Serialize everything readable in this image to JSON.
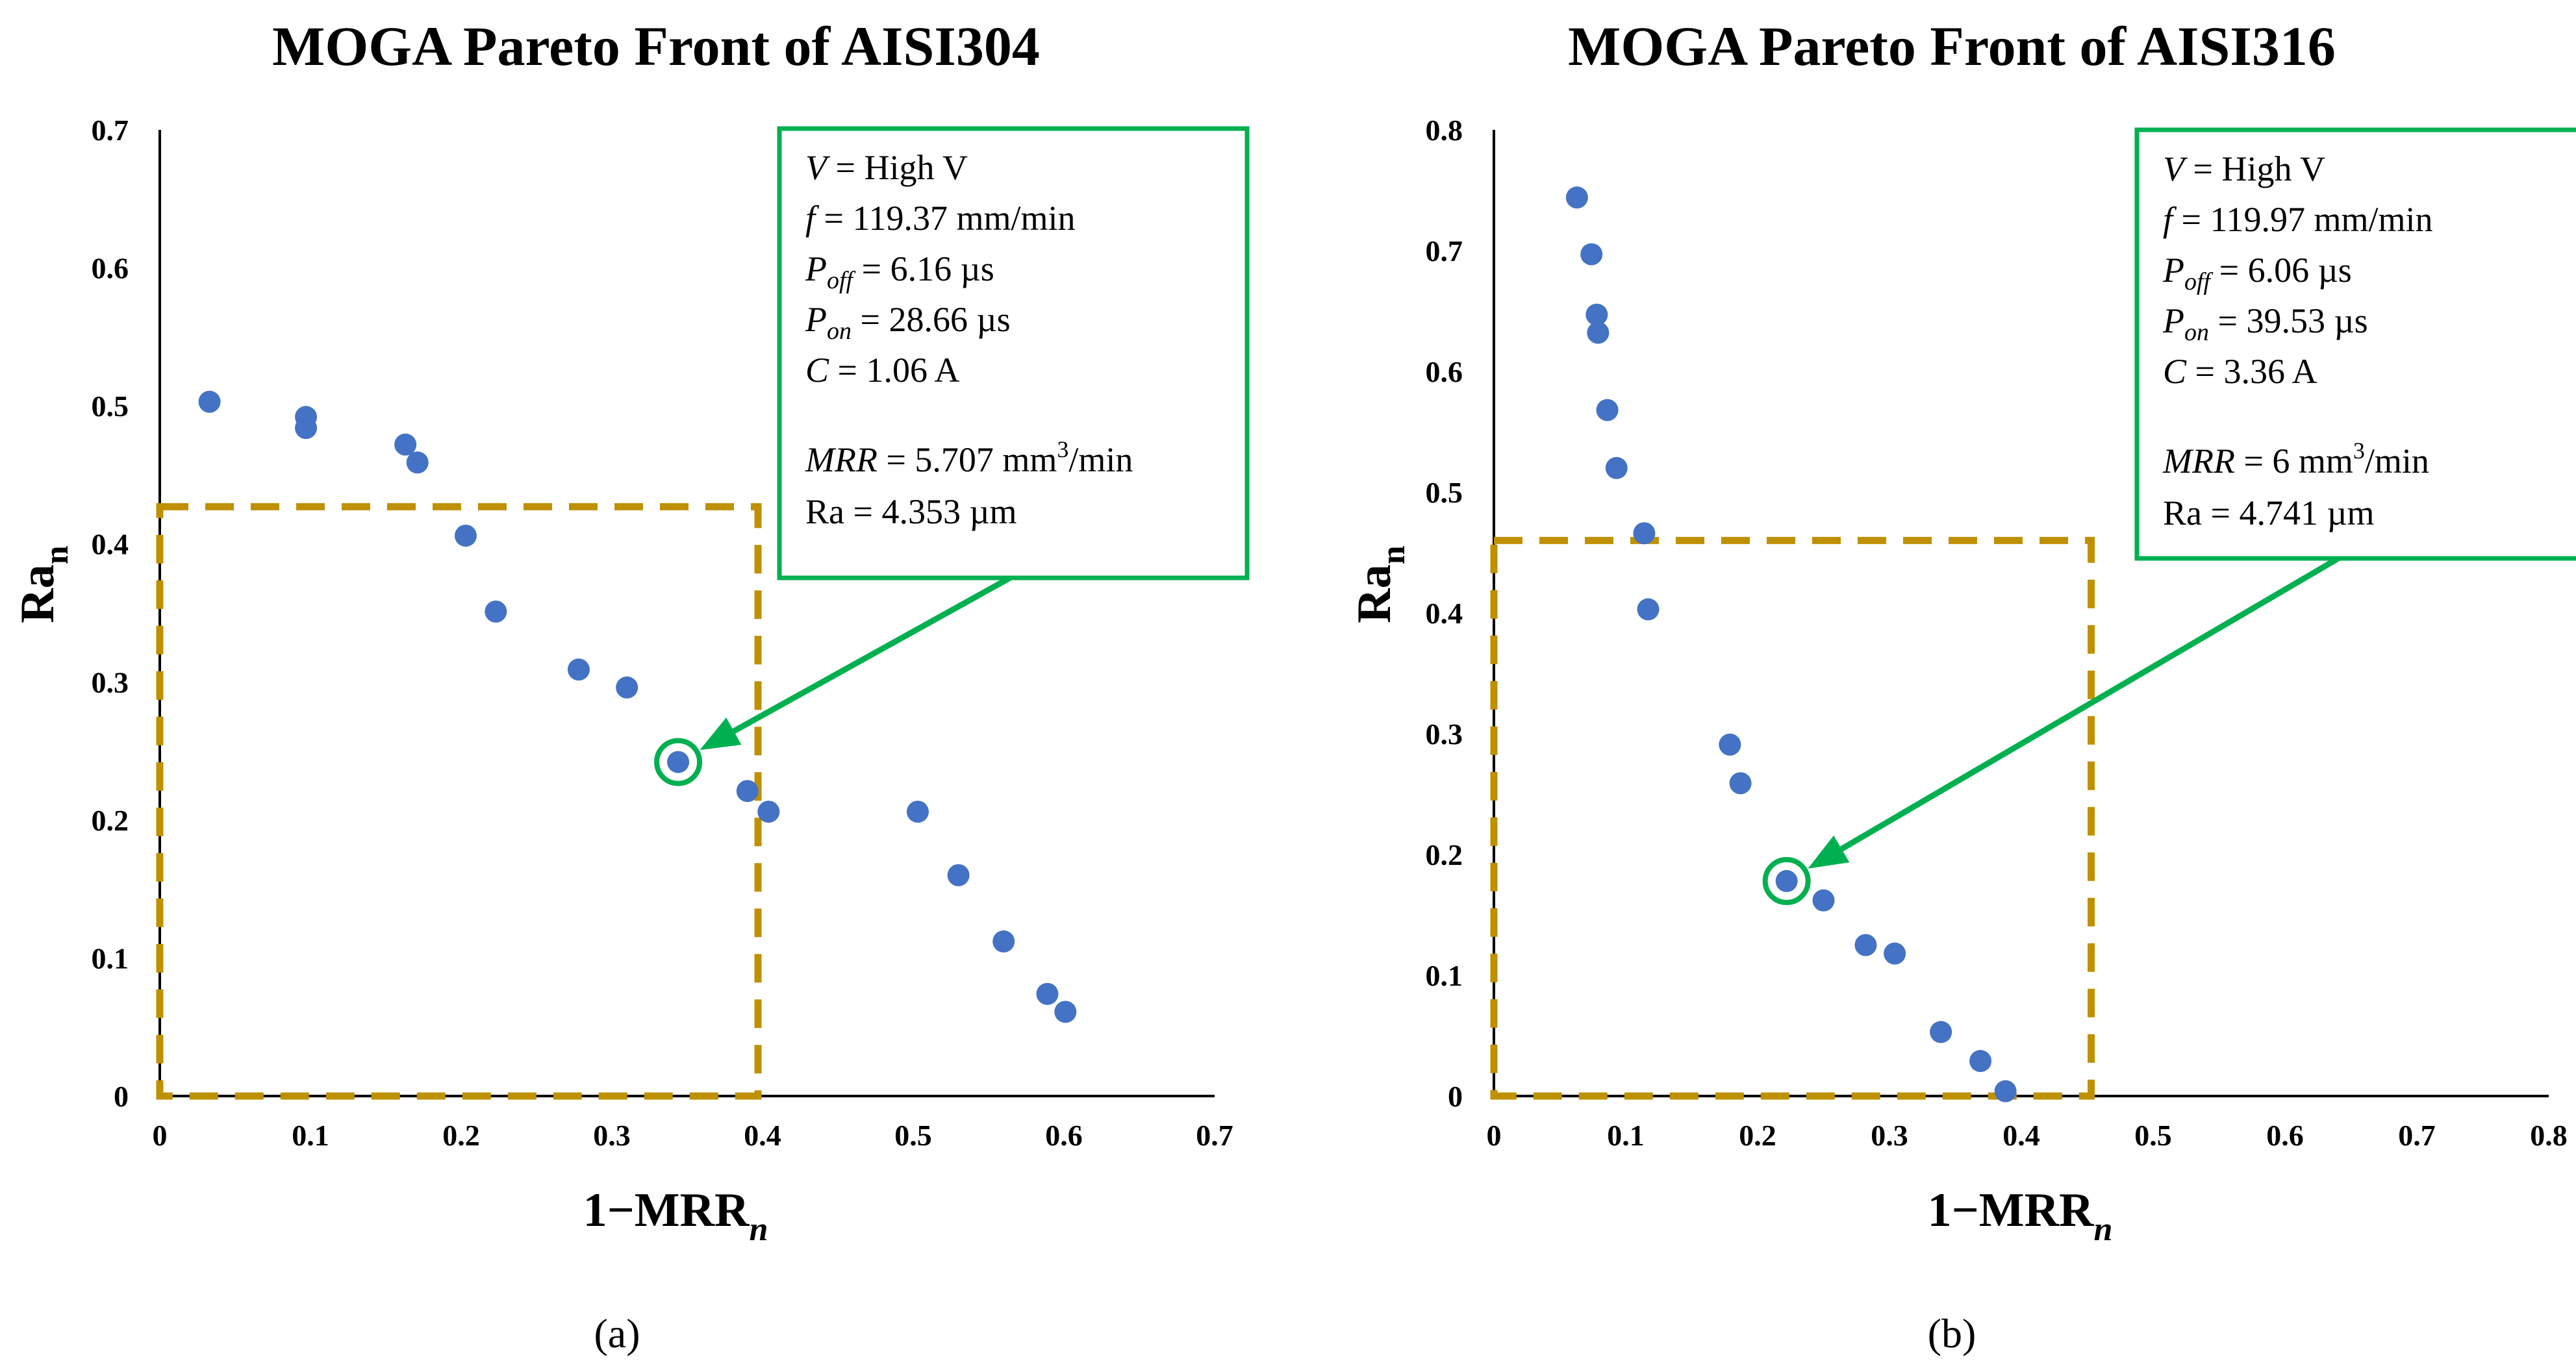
{
  "chart_data": [
    {
      "type": "scatter",
      "title": "MOGA Pareto Front of AISI304",
      "xlabel": "1−MRR",
      "xlabel_subscript": "n",
      "ylabel": "Ra",
      "ylabel_subscript": "n",
      "xlim": [
        0,
        0.7
      ],
      "ylim": [
        0,
        0.7
      ],
      "x_ticks": [
        "0",
        "0.1",
        "0.2",
        "0.3",
        "0.4",
        "0.5",
        "0.6",
        "0.7"
      ],
      "y_ticks": [
        "0",
        "0.1",
        "0.2",
        "0.3",
        "0.4",
        "0.5",
        "0.6",
        "0.7"
      ],
      "grid": false,
      "point_color": "#4472C4",
      "points": [
        {
          "x": 0.033,
          "y": 0.503
        },
        {
          "x": 0.097,
          "y": 0.492
        },
        {
          "x": 0.097,
          "y": 0.484
        },
        {
          "x": 0.163,
          "y": 0.472
        },
        {
          "x": 0.171,
          "y": 0.459
        },
        {
          "x": 0.203,
          "y": 0.406
        },
        {
          "x": 0.223,
          "y": 0.351
        },
        {
          "x": 0.278,
          "y": 0.309
        },
        {
          "x": 0.31,
          "y": 0.296
        },
        {
          "x": 0.344,
          "y": 0.242
        },
        {
          "x": 0.39,
          "y": 0.221
        },
        {
          "x": 0.404,
          "y": 0.206
        },
        {
          "x": 0.503,
          "y": 0.206
        },
        {
          "x": 0.53,
          "y": 0.16
        },
        {
          "x": 0.56,
          "y": 0.112
        },
        {
          "x": 0.589,
          "y": 0.074
        },
        {
          "x": 0.601,
          "y": 0.061
        }
      ],
      "region_box": {
        "x": [
          0,
          0.397
        ],
        "y": [
          0,
          0.427
        ],
        "color": "#BF9000"
      },
      "highlight": {
        "x": 0.344,
        "y": 0.242,
        "color": "#00B050"
      },
      "annotation": {
        "lines": [
          {
            "var": "V",
            "sub": "",
            "text": " = High V"
          },
          {
            "var": "f",
            "sub": "",
            "text": " = 119.37 mm/min"
          },
          {
            "var": "P",
            "sub": "off",
            "text": " = 6.16 µs"
          },
          {
            "var": "P",
            "sub": "on",
            "text": " = 28.66 µs"
          },
          {
            "var": "C",
            "sub": "",
            "text": " = 1.06 A"
          },
          {
            "var": "MRR",
            "sub": "",
            "text": " = 5.707 mm",
            "sup": "3",
            "tail": "/min"
          },
          {
            "var": "",
            "sub": "",
            "text": "Ra = 4.353 µm"
          }
        ]
      },
      "label": "(a)"
    },
    {
      "type": "scatter",
      "title": "MOGA Pareto Front of AISI316",
      "xlabel": "1−MRR",
      "xlabel_subscript": "n",
      "ylabel": "Ra",
      "ylabel_subscript": "n",
      "xlim": [
        0,
        0.8
      ],
      "ylim": [
        0,
        0.8
      ],
      "x_ticks": [
        "0",
        "0.1",
        "0.2",
        "0.3",
        "0.4",
        "0.5",
        "0.6",
        "0.7",
        "0.8"
      ],
      "y_ticks": [
        "0",
        "0.1",
        "0.2",
        "0.3",
        "0.4",
        "0.5",
        "0.6",
        "0.7",
        "0.8"
      ],
      "grid": false,
      "point_color": "#4472C4",
      "points": [
        {
          "x": 0.063,
          "y": 0.744
        },
        {
          "x": 0.074,
          "y": 0.697
        },
        {
          "x": 0.078,
          "y": 0.647
        },
        {
          "x": 0.079,
          "y": 0.632
        },
        {
          "x": 0.086,
          "y": 0.568
        },
        {
          "x": 0.093,
          "y": 0.52
        },
        {
          "x": 0.114,
          "y": 0.466
        },
        {
          "x": 0.117,
          "y": 0.403
        },
        {
          "x": 0.179,
          "y": 0.291
        },
        {
          "x": 0.187,
          "y": 0.259
        },
        {
          "x": 0.222,
          "y": 0.178
        },
        {
          "x": 0.25,
          "y": 0.162
        },
        {
          "x": 0.282,
          "y": 0.125
        },
        {
          "x": 0.304,
          "y": 0.118
        },
        {
          "x": 0.339,
          "y": 0.053
        },
        {
          "x": 0.369,
          "y": 0.029
        },
        {
          "x": 0.388,
          "y": 0.004
        }
      ],
      "region_box": {
        "x": [
          0,
          0.453
        ],
        "y": [
          0,
          0.46
        ],
        "color": "#BF9000"
      },
      "highlight": {
        "x": 0.222,
        "y": 0.178,
        "color": "#00B050"
      },
      "annotation": {
        "lines": [
          {
            "var": "V",
            "sub": "",
            "text": " = High V"
          },
          {
            "var": "f",
            "sub": "",
            "text": " = 119.97 mm/min"
          },
          {
            "var": "P",
            "sub": "off",
            "text": " = 6.06 µs"
          },
          {
            "var": "P",
            "sub": "on",
            "text": " = 39.53 µs"
          },
          {
            "var": "C",
            "sub": "",
            "text": " = 3.36 A"
          },
          {
            "var": "MRR",
            "sub": "",
            "text": " = 6 mm",
            "sup": "3",
            "tail": "/min"
          },
          {
            "var": "",
            "sub": "",
            "text": "Ra = 4.741 µm"
          }
        ]
      },
      "label": "(b)"
    }
  ]
}
